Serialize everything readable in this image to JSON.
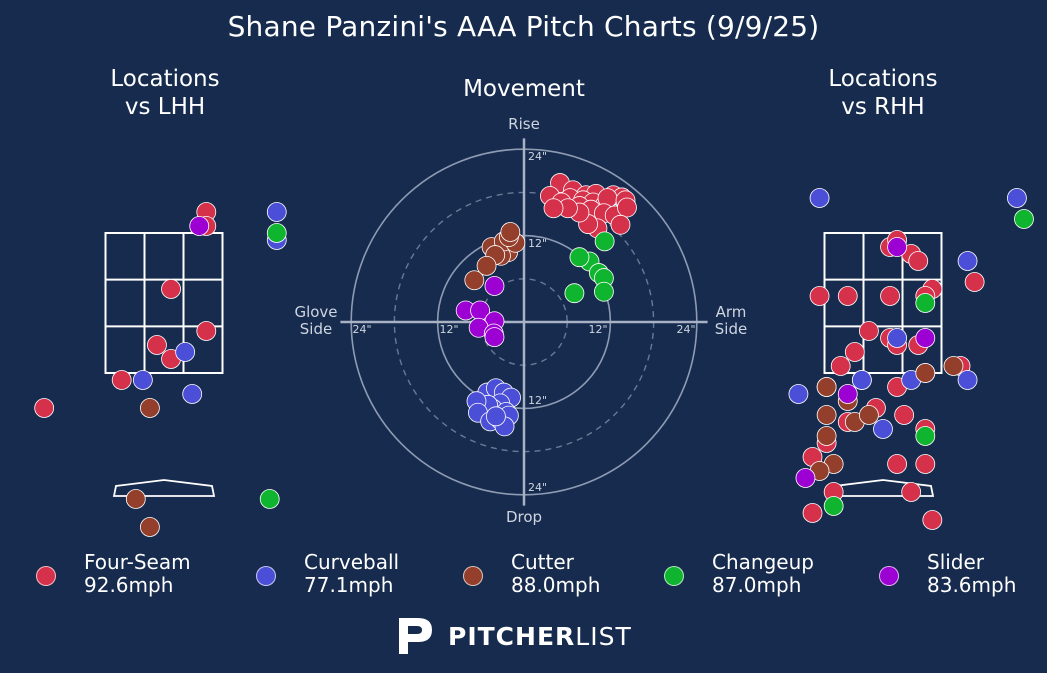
{
  "title": "Shane Panzini's AAA Pitch Charts (9/9/25)",
  "panels": {
    "lhh_title": "Locations\nvs LHH",
    "movement_title": "Movement",
    "rhh_title": "Locations\nvs RHH"
  },
  "movement_labels": {
    "top": "Rise",
    "bottom": "Drop",
    "left": "Glove\nSide",
    "right": "Arm\nSide",
    "ring_inner": "12\"",
    "ring_outer": "24\""
  },
  "legend": [
    {
      "pitch": "Four-Seam",
      "velo": "92.6mph",
      "color": "#d5314b"
    },
    {
      "pitch": "Curveball",
      "velo": "77.1mph",
      "color": "#4b4fd7"
    },
    {
      "pitch": "Cutter",
      "velo": "88.0mph",
      "color": "#933f2c"
    },
    {
      "pitch": "Changeup",
      "velo": "87.0mph",
      "color": "#0fb52e"
    },
    {
      "pitch": "Slider",
      "velo": "83.6mph",
      "color": "#9d00d2"
    }
  ],
  "logo": {
    "bold": "PITCHER",
    "light": "LIST"
  },
  "chart_data": [
    {
      "type": "scatter",
      "title": "Locations vs LHH",
      "series": [
        {
          "name": "Four-Seam",
          "points": [
            [
              0.6,
              3.8
            ],
            [
              0.6,
              3.6
            ],
            [
              0.1,
              2.7
            ],
            [
              0.6,
              2.1
            ],
            [
              -0.1,
              1.9
            ],
            [
              0.1,
              1.7
            ],
            [
              -0.6,
              1.4
            ],
            [
              -1.7,
              1.0
            ]
          ]
        },
        {
          "name": "Curveball",
          "points": [
            [
              1.6,
              3.8
            ],
            [
              1.6,
              3.4
            ],
            [
              0.3,
              1.8
            ],
            [
              -0.3,
              1.4
            ],
            [
              0.4,
              1.2
            ]
          ]
        },
        {
          "name": "Cutter",
          "points": [
            [
              -0.2,
              1.0
            ],
            [
              -0.4,
              -0.3
            ],
            [
              -0.2,
              -0.7
            ]
          ]
        },
        {
          "name": "Changeup",
          "points": [
            [
              1.6,
              3.5
            ],
            [
              1.5,
              -0.3
            ]
          ]
        },
        {
          "name": "Slider",
          "points": [
            [
              0.5,
              3.6
            ]
          ]
        }
      ]
    },
    {
      "type": "scatter",
      "title": "Movement",
      "xlabel": "Glove Side / Arm Side",
      "ylabel": "Drop / Rise",
      "series": [
        {
          "name": "Four-Seam",
          "points": [
            [
              5,
              19.3
            ],
            [
              6.8,
              18.3
            ],
            [
              8.6,
              17.6
            ],
            [
              10,
              17.8
            ],
            [
              12.4,
              17.6
            ],
            [
              13.6,
              17.3
            ],
            [
              6.4,
              17.2
            ],
            [
              8.2,
              16.9
            ],
            [
              9.6,
              16.6
            ],
            [
              11.2,
              16.2
            ],
            [
              11.6,
              17.2
            ],
            [
              14.1,
              16.9
            ],
            [
              3.6,
              17.5
            ],
            [
              5.2,
              16.6
            ],
            [
              7.7,
              16.1
            ],
            [
              9.3,
              15.6
            ],
            [
              11.1,
              15.1
            ],
            [
              12.6,
              14.8
            ],
            [
              14.3,
              15.9
            ],
            [
              13.4,
              13.5
            ],
            [
              10.2,
              13.0
            ],
            [
              8.9,
              13.6
            ],
            [
              7.7,
              15.2
            ],
            [
              6.1,
              15.8
            ],
            [
              4.1,
              15.8
            ]
          ]
        },
        {
          "name": "Curveball",
          "points": [
            [
              -5.1,
              -9.8
            ],
            [
              -3.9,
              -9.2
            ],
            [
              -2.8,
              -9.8
            ],
            [
              -1.8,
              -10.5
            ],
            [
              -3.3,
              -11.3
            ],
            [
              -4.4,
              -12.0
            ],
            [
              -2.5,
              -12.5
            ],
            [
              -5.0,
              -11.5
            ],
            [
              -6.6,
              -11.0
            ],
            [
              -6.4,
              -12.6
            ],
            [
              -4.7,
              -13.8
            ],
            [
              -3.3,
              -13.6
            ],
            [
              -2.1,
              -13.0
            ],
            [
              -2.7,
              -14.5
            ],
            [
              -3.9,
              -13.1
            ]
          ]
        },
        {
          "name": "Cutter",
          "points": [
            [
              -2.2,
              9.7
            ],
            [
              -3.2,
              9.2
            ],
            [
              -4.5,
              10.4
            ],
            [
              -2.8,
              11.2
            ],
            [
              -1.2,
              11.0
            ],
            [
              -2.1,
              11.8
            ],
            [
              -1.9,
              12.5
            ],
            [
              -4.0,
              9.3
            ],
            [
              -5.2,
              7.8
            ],
            [
              -6.9,
              5.8
            ]
          ]
        },
        {
          "name": "Changeup",
          "points": [
            [
              11.2,
              11.2
            ],
            [
              9.1,
              8.4
            ],
            [
              10.4,
              6.8
            ],
            [
              7.7,
              9.0
            ],
            [
              11.1,
              6.1
            ],
            [
              11.1,
              4.2
            ],
            [
              7.0,
              4.0
            ]
          ]
        },
        {
          "name": "Slider",
          "points": [
            [
              -4.1,
              5.0
            ],
            [
              -8.1,
              1.6
            ],
            [
              -6.1,
              1.6
            ],
            [
              -4.1,
              0.1
            ],
            [
              -6.3,
              -0.8
            ],
            [
              -4.2,
              -1.6
            ],
            [
              -4.1,
              -2.1
            ]
          ]
        }
      ]
    },
    {
      "type": "scatter",
      "title": "Locations vs RHH",
      "series": [
        {
          "name": "Four-Seam",
          "points": [
            [
              0.1,
              3.3
            ],
            [
              0.4,
              3.2
            ],
            [
              0.2,
              3.4
            ],
            [
              0.5,
              3.1
            ],
            [
              0.7,
              2.7
            ],
            [
              1.3,
              2.8
            ],
            [
              -0.9,
              2.6
            ],
            [
              -0.5,
              2.6
            ],
            [
              0.1,
              2.6
            ],
            [
              0.6,
              2.6
            ],
            [
              -0.2,
              2.1
            ],
            [
              0.1,
              2.0
            ],
            [
              0.2,
              1.9
            ],
            [
              0.5,
              1.9
            ],
            [
              -0.4,
              1.8
            ],
            [
              -0.6,
              1.6
            ],
            [
              -0.3,
              1.4
            ],
            [
              0.2,
              1.3
            ],
            [
              0.6,
              1.5
            ],
            [
              1.1,
              1.6
            ],
            [
              -0.1,
              1.0
            ],
            [
              0.3,
              0.9
            ],
            [
              0.6,
              0.7
            ],
            [
              -0.5,
              0.8
            ],
            [
              -0.8,
              0.5
            ],
            [
              0.6,
              0.2
            ],
            [
              -1.0,
              0.3
            ],
            [
              -0.7,
              -0.2
            ],
            [
              0.2,
              0.2
            ],
            [
              0.7,
              -0.6
            ],
            [
              -0.8,
              1.3
            ],
            [
              0.4,
              -0.2
            ],
            [
              -1.0,
              -0.5
            ]
          ]
        },
        {
          "name": "Curveball",
          "points": [
            [
              -0.9,
              4.0
            ],
            [
              1.9,
              4.0
            ],
            [
              1.2,
              3.1
            ],
            [
              0.2,
              2.0
            ],
            [
              0.4,
              1.4
            ],
            [
              1.2,
              1.4
            ],
            [
              -1.2,
              1.2
            ],
            [
              0.0,
              0.7
            ],
            [
              -0.3,
              1.4
            ]
          ]
        },
        {
          "name": "Cutter",
          "points": [
            [
              -0.8,
              1.3
            ],
            [
              0.6,
              1.5
            ],
            [
              1.0,
              1.6
            ],
            [
              -0.8,
              0.9
            ],
            [
              -0.4,
              0.8
            ],
            [
              -0.8,
              0.6
            ],
            [
              -0.5,
              1.1
            ],
            [
              -0.2,
              0.9
            ],
            [
              -0.7,
              0.2
            ],
            [
              -0.9,
              0.1
            ]
          ]
        },
        {
          "name": "Changeup",
          "points": [
            [
              2.0,
              3.7
            ],
            [
              0.6,
              2.5
            ],
            [
              0.6,
              0.6
            ],
            [
              -0.7,
              -0.4
            ]
          ]
        },
        {
          "name": "Slider",
          "points": [
            [
              0.2,
              3.3
            ],
            [
              0.6,
              2.0
            ],
            [
              -0.5,
              1.2
            ],
            [
              -1.1,
              0.0
            ]
          ]
        }
      ]
    }
  ]
}
